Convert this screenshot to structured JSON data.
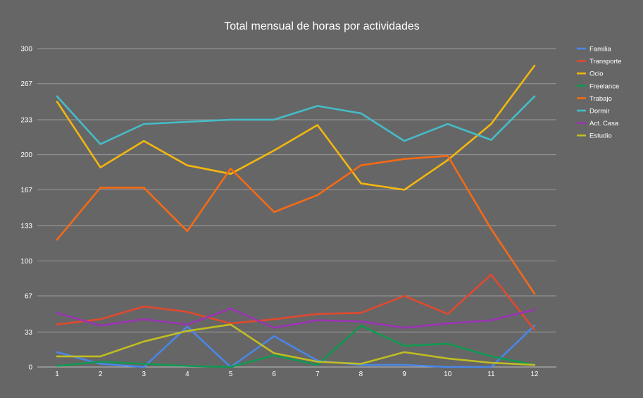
{
  "chart_data": {
    "type": "line",
    "title": "Total mensual de horas por actividades",
    "xlabel": "",
    "ylabel": "",
    "x": [
      1,
      2,
      3,
      4,
      5,
      6,
      7,
      8,
      9,
      10,
      11,
      12
    ],
    "x_tick_labels": [
      "1",
      "2",
      "3",
      "4",
      "5",
      "6",
      "7",
      "8",
      "9",
      "10",
      "11",
      "12"
    ],
    "y_ticks": [
      0,
      33,
      67,
      100,
      133,
      167,
      200,
      233,
      267,
      300
    ],
    "y_tick_labels": [
      "0",
      "33",
      "67",
      "100",
      "133",
      "167",
      "200",
      "233",
      "267",
      "300"
    ],
    "ylim": [
      0,
      300
    ],
    "grid": true,
    "legend_position": "right",
    "series": [
      {
        "name": "Familia",
        "color": "#4a86e8",
        "values": [
          14,
          3,
          0,
          38,
          0,
          29,
          6,
          2,
          2,
          0,
          0,
          39
        ]
      },
      {
        "name": "Transporte",
        "color": "#e0492f",
        "values": [
          40,
          45,
          57,
          52,
          41,
          45,
          50,
          51,
          67,
          50,
          87,
          35
        ]
      },
      {
        "name": "Ocio",
        "color": "#f3b70d",
        "values": [
          250,
          188,
          213,
          190,
          182,
          204,
          228,
          173,
          167,
          195,
          229,
          284
        ]
      },
      {
        "name": "Freelance",
        "color": "#109a52",
        "values": [
          1,
          5,
          3,
          1,
          0,
          11,
          2,
          39,
          20,
          22,
          10,
          2
        ]
      },
      {
        "name": "Trabajo",
        "color": "#f56a15",
        "values": [
          120,
          169,
          169,
          128,
          187,
          146,
          162,
          190,
          196,
          199,
          130,
          69
        ]
      },
      {
        "name": "Dormir",
        "color": "#45bcc6",
        "values": [
          255,
          210,
          229,
          231,
          233,
          233,
          246,
          239,
          213,
          229,
          214,
          255
        ]
      },
      {
        "name": "Act. Casa",
        "color": "#9b34b4",
        "values": [
          51,
          39,
          45,
          40,
          55,
          37,
          44,
          43,
          37,
          41,
          44,
          54
        ]
      },
      {
        "name": "Estudio",
        "color": "#bfbd22",
        "values": [
          10,
          10,
          24,
          34,
          40,
          13,
          5,
          3,
          14,
          8,
          4,
          2
        ]
      }
    ]
  }
}
